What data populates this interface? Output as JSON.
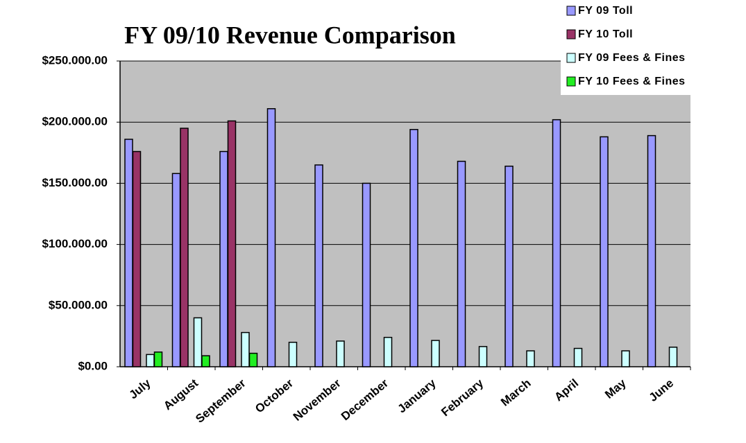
{
  "chart_data": {
    "type": "bar",
    "title": "FY 09/10 Revenue Comparison",
    "categories": [
      "July",
      "August",
      "September",
      "October",
      "November",
      "December",
      "January",
      "February",
      "March",
      "April",
      "May",
      "June"
    ],
    "series": [
      {
        "name": "FY 09 Toll",
        "color": "#9999ff",
        "values": [
          186000,
          158000,
          176000,
          211000,
          165000,
          150000,
          194000,
          168000,
          164000,
          202000,
          188000,
          189000
        ]
      },
      {
        "name": "FY 10 Toll",
        "color": "#993366",
        "values": [
          176000,
          195000,
          201000,
          null,
          null,
          null,
          null,
          null,
          null,
          null,
          null,
          null
        ]
      },
      {
        "name": "FY 09 Fees & Fines",
        "color": "#ccffff",
        "values": [
          10000,
          40000,
          28000,
          20000,
          21000,
          24000,
          21500,
          16500,
          13000,
          15000,
          13000,
          16000
        ]
      },
      {
        "name": "FY 10 Fees & Fines",
        "color": "#22ee22",
        "values": [
          12000,
          9000,
          11000,
          null,
          null,
          null,
          null,
          null,
          null,
          null,
          null,
          null
        ]
      }
    ],
    "ylim": [
      0,
      250000
    ],
    "yticks": [
      {
        "value": 0,
        "label": "$0.00"
      },
      {
        "value": 50000,
        "label": "$50.000.00"
      },
      {
        "value": 100000,
        "label": "$100.000.00"
      },
      {
        "value": 150000,
        "label": "$150.000.00"
      },
      {
        "value": 200000,
        "label": "$200.000.00"
      },
      {
        "value": 250000,
        "label": "$250.000.00"
      }
    ],
    "grid": true,
    "legend": "top-right"
  }
}
